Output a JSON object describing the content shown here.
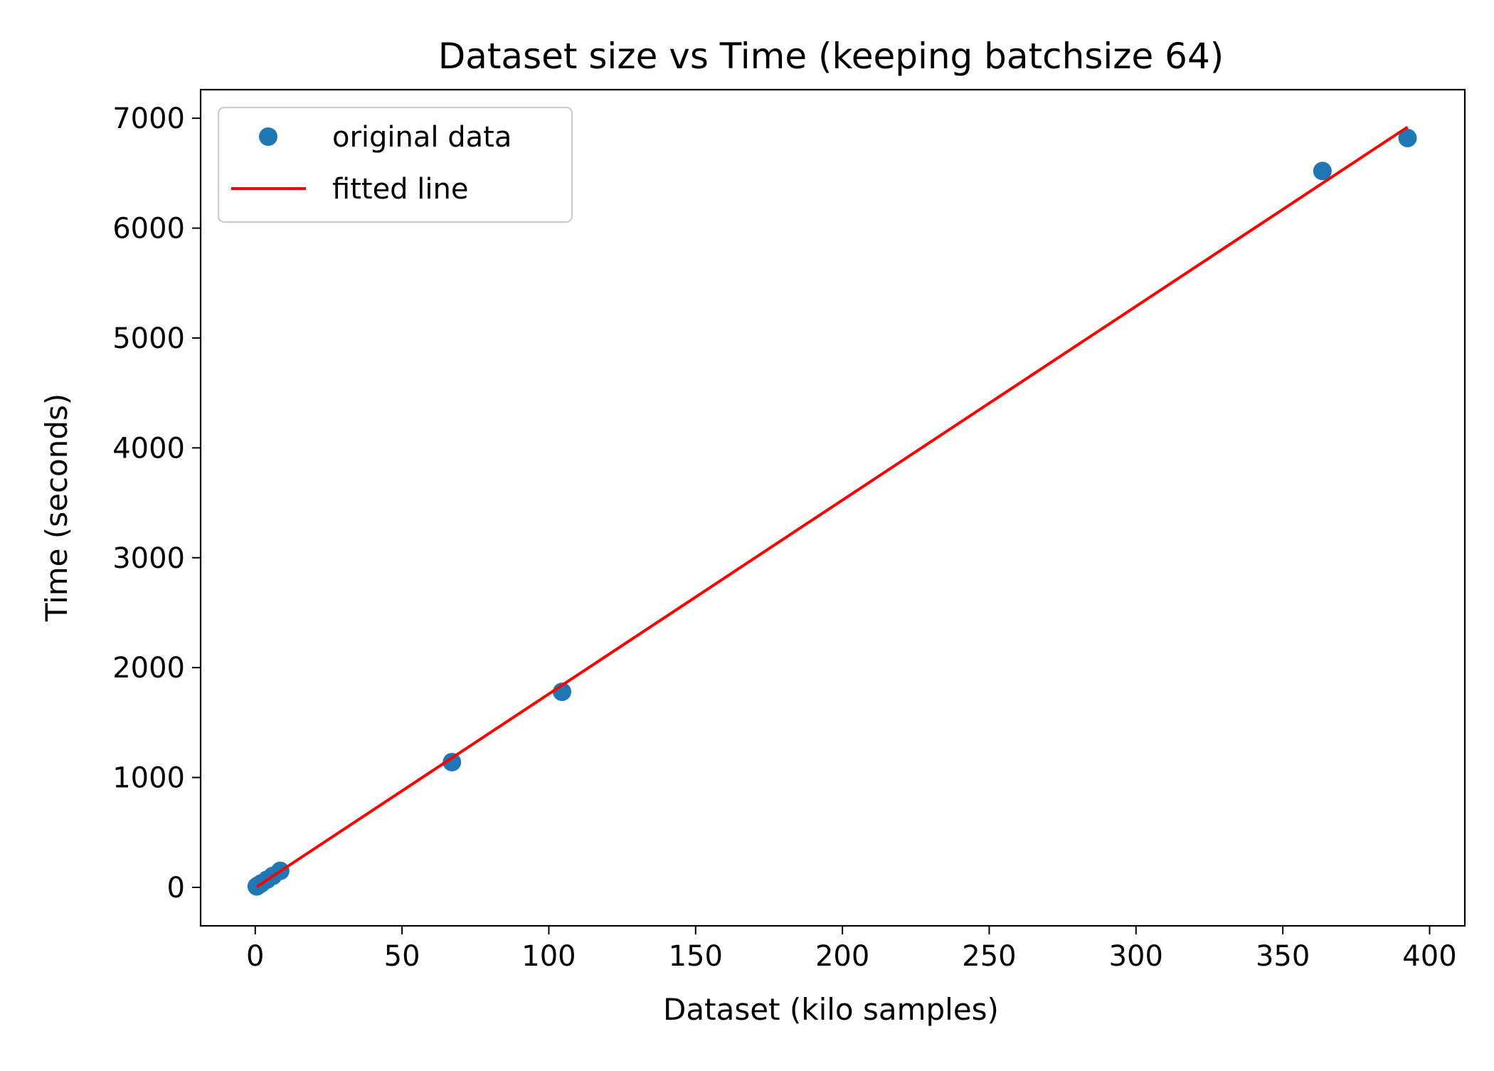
{
  "chart_data": {
    "type": "scatter",
    "title": "Dataset size vs Time (keeping batchsize 64)",
    "xlabel": "Dataset (kilo samples)",
    "ylabel": "Time (seconds)",
    "xlim": [
      -18.6,
      412
    ],
    "ylim": [
      -350,
      7260
    ],
    "xticks": [
      0,
      50,
      100,
      150,
      200,
      250,
      300,
      350,
      400
    ],
    "yticks": [
      0,
      1000,
      2000,
      3000,
      4000,
      5000,
      6000,
      7000
    ],
    "xtick_labels": [
      "0",
      "50",
      "100",
      "150",
      "200",
      "250",
      "300",
      "350",
      "400"
    ],
    "ytick_labels": [
      "0",
      "1000",
      "2000",
      "3000",
      "4000",
      "5000",
      "6000",
      "7000"
    ],
    "grid": false,
    "legend_position": "upper-left",
    "series": [
      {
        "name": "original data",
        "kind": "scatter",
        "color": "#1f77b4",
        "x": [
          0.5,
          1,
          2,
          4,
          6,
          8.5,
          67,
          104.5,
          363.5,
          392.5
        ],
        "y": [
          9,
          18,
          35,
          70,
          105,
          150,
          1140,
          1780,
          6520,
          6820
        ]
      },
      {
        "name": "fitted line",
        "kind": "line",
        "color": "#ff0000",
        "x": [
          0.5,
          392.5
        ],
        "y": [
          5,
          6920
        ]
      }
    ]
  }
}
